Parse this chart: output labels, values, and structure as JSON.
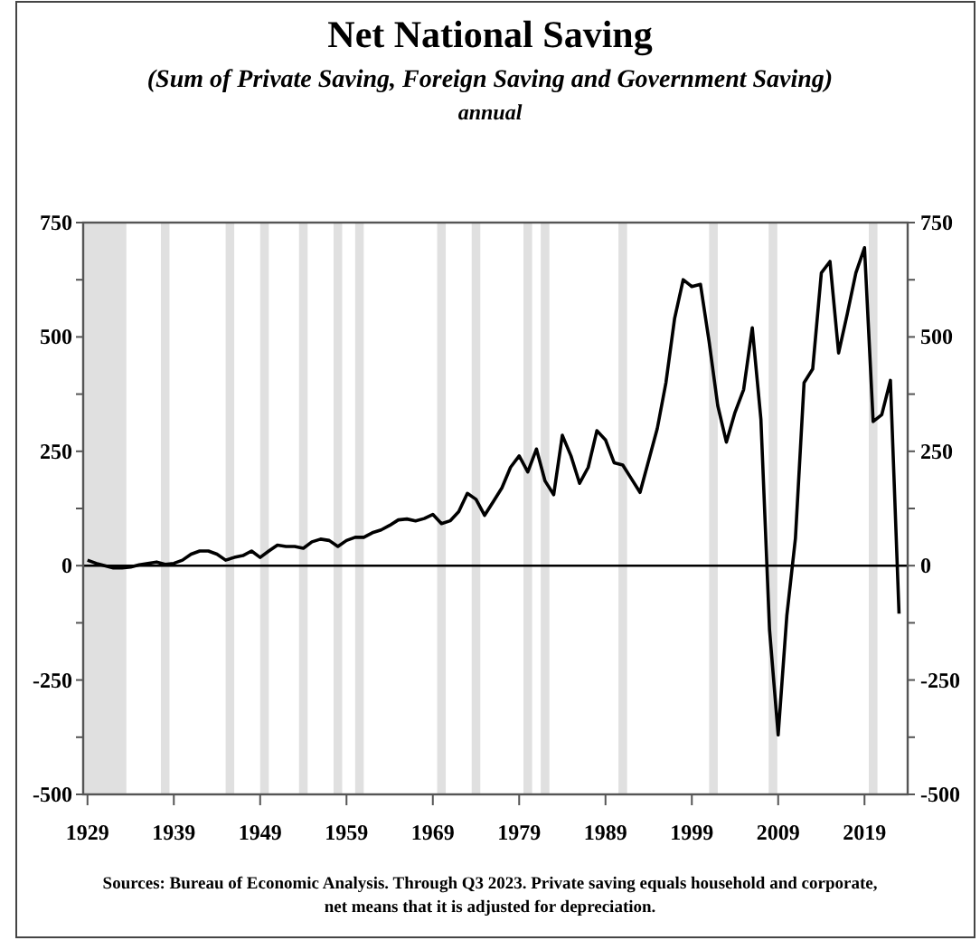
{
  "chart_data": {
    "type": "line",
    "title": "Net National Saving",
    "subtitle": "(Sum of Private Saving, Foreign Saving and Government Saving)",
    "annotations": [
      "annual",
      "Sources: Bureau of Economic Analysis. Through Q3 2023. Private saving equals household and corporate, net means that it is adjusted for depreciation."
    ],
    "x": [
      1929,
      1930,
      1931,
      1932,
      1933,
      1934,
      1935,
      1936,
      1937,
      1938,
      1939,
      1940,
      1941,
      1942,
      1943,
      1944,
      1945,
      1946,
      1947,
      1948,
      1949,
      1950,
      1951,
      1952,
      1953,
      1954,
      1955,
      1956,
      1957,
      1958,
      1959,
      1960,
      1961,
      1962,
      1963,
      1964,
      1965,
      1966,
      1967,
      1968,
      1969,
      1970,
      1971,
      1972,
      1973,
      1974,
      1975,
      1976,
      1977,
      1978,
      1979,
      1980,
      1981,
      1982,
      1983,
      1984,
      1985,
      1986,
      1987,
      1988,
      1989,
      1990,
      1991,
      1992,
      1993,
      1994,
      1995,
      1996,
      1997,
      1998,
      1999,
      2000,
      2001,
      2002,
      2003,
      2004,
      2005,
      2006,
      2007,
      2008,
      2009,
      2010,
      2011,
      2012,
      2013,
      2014,
      2015,
      2016,
      2017,
      2018,
      2019,
      2020,
      2021,
      2022,
      2023
    ],
    "series": [
      {
        "color": "#000000",
        "values": [
          12,
          5,
          0,
          -5,
          -5,
          -3,
          2,
          5,
          8,
          3,
          5,
          12,
          25,
          32,
          32,
          25,
          12,
          18,
          22,
          32,
          18,
          32,
          45,
          42,
          42,
          38,
          52,
          58,
          55,
          42,
          55,
          62,
          62,
          72,
          78,
          88,
          100,
          102,
          98,
          103,
          112,
          92,
          98,
          118,
          158,
          145,
          110,
          140,
          170,
          215,
          240,
          205,
          255,
          185,
          155,
          285,
          240,
          180,
          215,
          295,
          275,
          225,
          220,
          190,
          160,
          230,
          300,
          400,
          540,
          625,
          610,
          615,
          490,
          350,
          270,
          335,
          385,
          520,
          320,
          -140,
          -370,
          -110,
          60,
          400,
          430,
          640,
          665,
          465,
          550,
          640,
          695,
          315,
          330,
          405,
          -105
        ]
      }
    ],
    "xlim": [
      1928.5,
      2024
    ],
    "xticks": [
      1929,
      1939,
      1949,
      1959,
      1969,
      1979,
      1989,
      1999,
      2009,
      2019
    ],
    "ylim": [
      -500,
      750
    ],
    "yticks": [
      -500,
      {
        "value": -375,
        "label": null
      },
      -250,
      {
        "value": -125,
        "label": null
      },
      0,
      {
        "value": 125,
        "label": null
      },
      250,
      {
        "value": 375,
        "label": null
      },
      500,
      {
        "value": 625,
        "label": null
      },
      750
    ],
    "y2lim": [
      -500,
      750
    ],
    "y2ticks": [
      -500,
      {
        "value": -375,
        "label": null
      },
      -250,
      {
        "value": -125,
        "label": null
      },
      0,
      {
        "value": 125,
        "label": null
      },
      250,
      {
        "value": 375,
        "label": null
      },
      500,
      {
        "value": 625,
        "label": null
      },
      750
    ],
    "ref_lines": [
      {
        "axis": "y",
        "value": 0,
        "color": "#000000"
      }
    ],
    "bands": [
      {
        "axis": "x",
        "from": 1928.5,
        "to": 1933.5,
        "color": "#e0e0e0"
      },
      {
        "axis": "x",
        "from": 1937.5,
        "to": 1938.5,
        "color": "#e0e0e0"
      },
      {
        "axis": "x",
        "from": 1945,
        "to": 1946,
        "color": "#e0e0e0"
      },
      {
        "axis": "x",
        "from": 1949,
        "to": 1950,
        "color": "#e0e0e0"
      },
      {
        "axis": "x",
        "from": 1953.5,
        "to": 1954.5,
        "color": "#e0e0e0"
      },
      {
        "axis": "x",
        "from": 1957.5,
        "to": 1958.5,
        "color": "#e0e0e0"
      },
      {
        "axis": "x",
        "from": 1960,
        "to": 1961,
        "color": "#e0e0e0"
      },
      {
        "axis": "x",
        "from": 1969.5,
        "to": 1970.5,
        "color": "#e0e0e0"
      },
      {
        "axis": "x",
        "from": 1973.5,
        "to": 1974.5,
        "color": "#e0e0e0"
      },
      {
        "axis": "x",
        "from": 1979.5,
        "to": 1980.5,
        "color": "#e0e0e0"
      },
      {
        "axis": "x",
        "from": 1981.5,
        "to": 1982.5,
        "color": "#e0e0e0"
      },
      {
        "axis": "x",
        "from": 1990.5,
        "to": 1991.5,
        "color": "#e0e0e0"
      },
      {
        "axis": "x",
        "from": 2001,
        "to": 2002,
        "color": "#e0e0e0"
      },
      {
        "axis": "x",
        "from": 2007.9,
        "to": 2008.9,
        "color": "#e0e0e0"
      },
      {
        "axis": "x",
        "from": 2019.5,
        "to": 2020.5,
        "color": "#e0e0e0"
      }
    ],
    "grid": false,
    "marker": "none",
    "line_style": "solid"
  }
}
